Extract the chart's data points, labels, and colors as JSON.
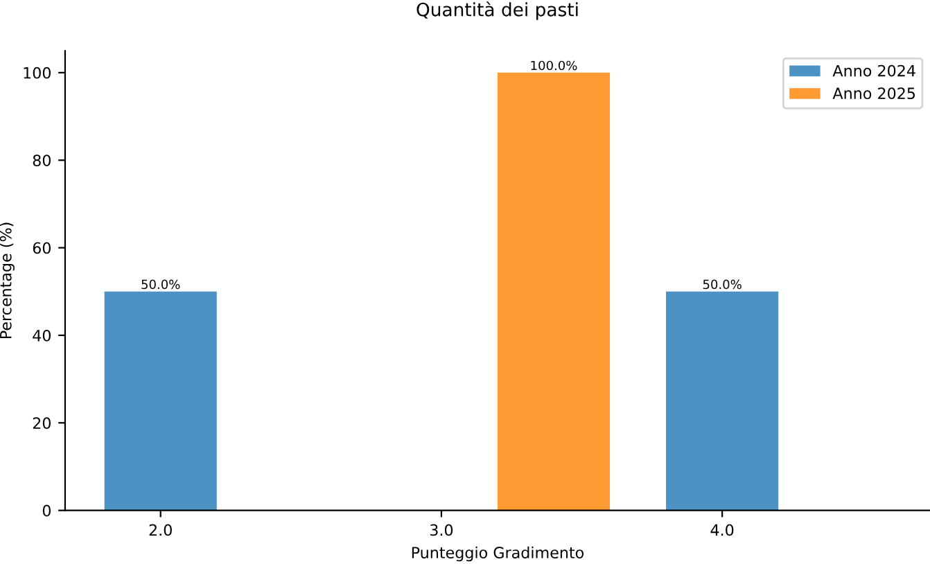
{
  "chart_data": {
    "type": "bar",
    "title": "Quantità dei pasti",
    "xlabel": "Punteggio Gradimento",
    "ylabel": "Percentage (%)",
    "categories": [
      "2.0",
      "3.0",
      "4.0"
    ],
    "series": [
      {
        "name": "Anno 2024",
        "color": "#4c92c3",
        "values": [
          50,
          0,
          50
        ],
        "value_labels": [
          "50.0%",
          null,
          "50.0%"
        ]
      },
      {
        "name": "Anno 2025",
        "color": "#ff9932",
        "values": [
          0,
          100,
          0
        ],
        "value_labels": [
          null,
          "100.0%",
          null
        ]
      }
    ],
    "ylim": [
      0,
      105
    ],
    "yticks": [
      0,
      20,
      40,
      60,
      80,
      100
    ],
    "grid": false,
    "legend": "top right"
  }
}
